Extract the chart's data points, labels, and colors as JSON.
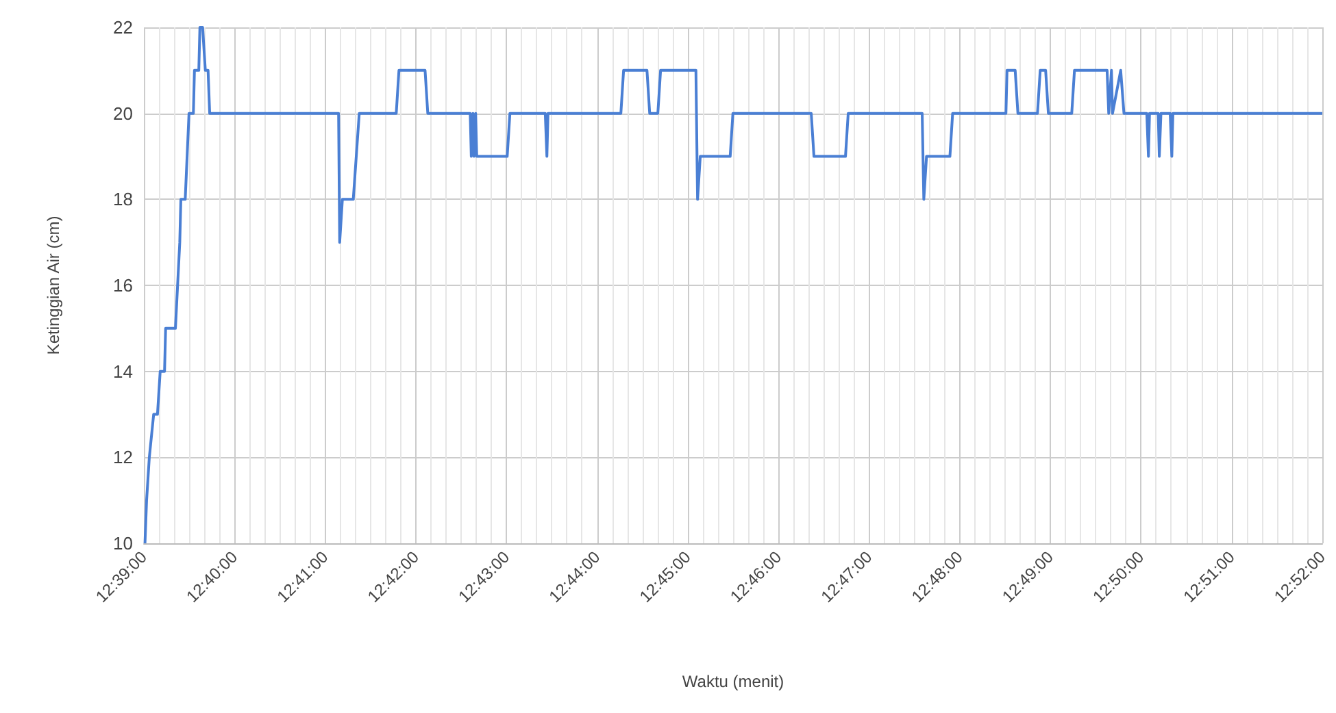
{
  "chart_data": {
    "type": "line",
    "xlabel": "Waktu (menit)",
    "ylabel": "Ketinggian Air (cm)",
    "xlim": [
      12.65,
      12.866667
    ],
    "xticks": [
      {
        "value": 12.65,
        "label": "12:39:00"
      },
      {
        "value": 12.666667,
        "label": "12:40:00"
      },
      {
        "value": 12.683333,
        "label": "12:41:00"
      },
      {
        "value": 12.7,
        "label": "12:42:00"
      },
      {
        "value": 12.716667,
        "label": "12:43:00"
      },
      {
        "value": 12.733333,
        "label": "12:44:00"
      },
      {
        "value": 12.75,
        "label": "12:45:00"
      },
      {
        "value": 12.766667,
        "label": "12:46:00"
      },
      {
        "value": 12.783333,
        "label": "12:47:00"
      },
      {
        "value": 12.8,
        "label": "12:48:00"
      },
      {
        "value": 12.816667,
        "label": "12:49:00"
      },
      {
        "value": 12.833333,
        "label": "12:50:00"
      },
      {
        "value": 12.85,
        "label": "12:51:00"
      },
      {
        "value": 12.866667,
        "label": "12:52:00"
      }
    ],
    "ylim": [
      10,
      22
    ],
    "yticks": [
      10,
      12,
      14,
      16,
      18,
      20,
      22
    ],
    "grid": true,
    "line_style": "solid",
    "series": [
      {
        "color": "#4a7fd4",
        "x": [
          12.6502,
          12.6505,
          12.651,
          12.6518,
          12.6525,
          12.653,
          12.6538,
          12.654,
          12.6558,
          12.6566,
          12.6568,
          12.6576,
          12.6583,
          12.6591,
          12.6593,
          12.6601,
          12.6603,
          12.6608,
          12.6613,
          12.6618,
          12.6621,
          12.6858,
          12.686,
          12.6865,
          12.6885,
          12.6896,
          12.6964,
          12.6969,
          12.7017,
          12.7022,
          12.71,
          12.7102,
          12.7105,
          12.7107,
          12.711,
          12.7112,
          12.7168,
          12.7173,
          12.7238,
          12.7241,
          12.7243,
          12.7377,
          12.7382,
          12.7425,
          12.743,
          12.7445,
          12.745,
          12.7515,
          12.7518,
          12.7523,
          12.7578,
          12.7583,
          12.7727,
          12.7732,
          12.779,
          12.7795,
          12.7931,
          12.7934,
          12.7939,
          12.7982,
          12.7987,
          12.8085,
          12.8087,
          12.8102,
          12.8107,
          12.8143,
          12.8148,
          12.8158,
          12.8163,
          12.8206,
          12.8211,
          12.8271,
          12.8274,
          12.8279,
          12.8281,
          12.8296,
          12.8302,
          12.8344,
          12.8347,
          12.8349,
          12.8365,
          12.8367,
          12.837,
          12.8387,
          12.839,
          12.8392,
          12.866667
        ],
        "values": [
          10,
          11,
          12,
          13,
          13,
          14,
          14,
          15,
          15,
          17,
          18,
          18,
          20,
          20,
          21,
          21,
          22,
          22,
          21,
          21,
          20,
          20,
          17,
          18,
          18,
          20,
          20,
          21,
          21,
          20,
          20,
          19,
          20,
          19,
          20,
          19,
          19,
          20,
          20,
          19,
          20,
          20,
          21,
          21,
          20,
          20,
          21,
          21,
          18,
          19,
          19,
          20,
          20,
          19,
          19,
          20,
          20,
          18,
          19,
          19,
          20,
          20,
          21,
          21,
          20,
          20,
          21,
          21,
          20,
          20,
          21,
          21,
          20,
          21,
          20,
          21,
          20,
          20,
          19,
          20,
          20,
          19,
          20,
          20,
          19,
          20,
          20
        ]
      }
    ]
  }
}
